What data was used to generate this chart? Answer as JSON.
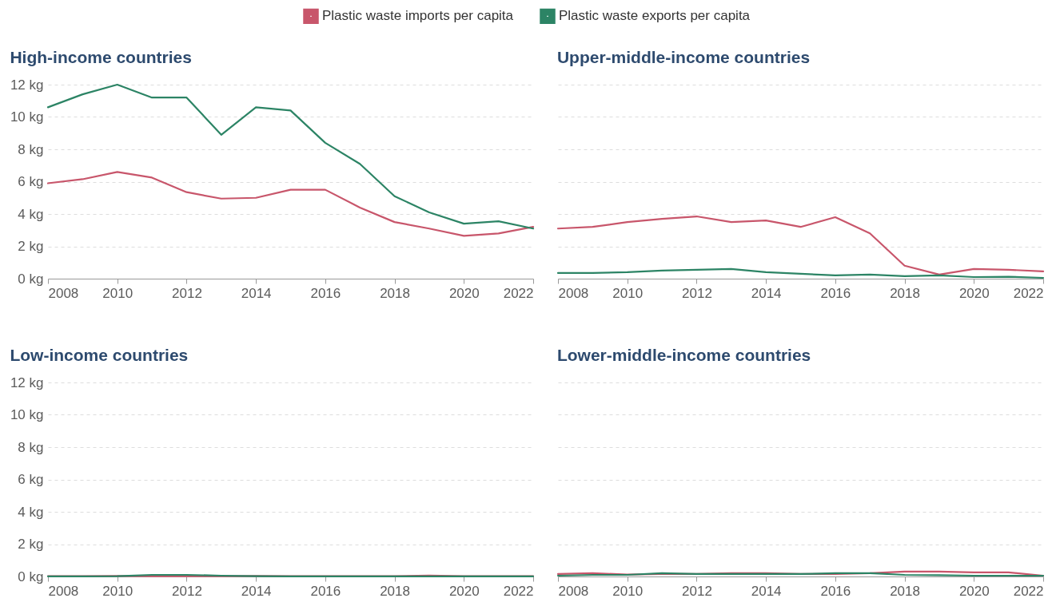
{
  "chart_data": [
    {
      "type": "line",
      "title": "High-income countries",
      "x": [
        2008,
        2009,
        2010,
        2011,
        2012,
        2013,
        2014,
        2015,
        2016,
        2017,
        2018,
        2019,
        2020,
        2021,
        2022
      ],
      "xlim": [
        2008,
        2022
      ],
      "xticks": [
        2008,
        2010,
        2012,
        2014,
        2016,
        2018,
        2020,
        2022
      ],
      "ylim": [
        0,
        12
      ],
      "yticks": [
        {
          "value": 0,
          "label": "0 kg"
        },
        {
          "value": 2,
          "label": "2 kg"
        },
        {
          "value": 4,
          "label": "4 kg"
        },
        {
          "value": 6,
          "label": "6 kg"
        },
        {
          "value": 8,
          "label": "8 kg"
        },
        {
          "value": 10,
          "label": "10 kg"
        },
        {
          "value": 12,
          "label": "12 kg"
        }
      ],
      "grid": "y",
      "legend": "top",
      "series": [
        {
          "name": "Plastic waste imports per capita",
          "color": "#c8566b",
          "values": [
            5.9,
            6.15,
            6.6,
            6.25,
            5.35,
            4.95,
            5.0,
            5.5,
            5.5,
            4.4,
            3.5,
            3.1,
            2.65,
            2.8,
            3.2
          ]
        },
        {
          "name": "Plastic waste exports per capita",
          "color": "#2c8465",
          "values": [
            10.6,
            11.4,
            12.0,
            11.2,
            11.2,
            8.9,
            10.6,
            10.4,
            8.4,
            7.1,
            5.1,
            4.1,
            3.4,
            3.55,
            3.1
          ]
        }
      ]
    },
    {
      "type": "line",
      "title": "Upper-middle-income countries",
      "x": [
        2008,
        2009,
        2010,
        2011,
        2012,
        2013,
        2014,
        2015,
        2016,
        2017,
        2018,
        2019,
        2020,
        2021,
        2022
      ],
      "xlim": [
        2008,
        2022
      ],
      "xticks": [
        2008,
        2010,
        2012,
        2014,
        2016,
        2018,
        2020,
        2022
      ],
      "ylim": [
        0,
        12
      ],
      "yticks": [
        {
          "value": 0,
          "label": null
        },
        {
          "value": 2,
          "label": null
        },
        {
          "value": 4,
          "label": null
        },
        {
          "value": 6,
          "label": null
        },
        {
          "value": 8,
          "label": null
        },
        {
          "value": 10,
          "label": null
        },
        {
          "value": 12,
          "label": null
        }
      ],
      "grid": "y",
      "tick_labels": "x",
      "series": [
        {
          "color": "#c8566b",
          "values": [
            3.1,
            3.2,
            3.5,
            3.7,
            3.85,
            3.5,
            3.6,
            3.2,
            3.8,
            2.8,
            0.8,
            0.25,
            0.6,
            0.55,
            0.45
          ]
        },
        {
          "color": "#2c8465",
          "values": [
            0.35,
            0.35,
            0.4,
            0.5,
            0.55,
            0.6,
            0.4,
            0.3,
            0.2,
            0.25,
            0.15,
            0.2,
            0.1,
            0.12,
            0.05
          ]
        }
      ]
    },
    {
      "type": "line",
      "title": "Low-income countries",
      "x": [
        2008,
        2009,
        2010,
        2011,
        2012,
        2013,
        2014,
        2015,
        2016,
        2017,
        2018,
        2019,
        2020,
        2021,
        2022
      ],
      "xlim": [
        2008,
        2022
      ],
      "xticks": [
        2008,
        2010,
        2012,
        2014,
        2016,
        2018,
        2020,
        2022
      ],
      "ylim": [
        0,
        12
      ],
      "yticks": [
        {
          "value": 0,
          "label": "0 kg"
        },
        {
          "value": 2,
          "label": "2 kg"
        },
        {
          "value": 4,
          "label": "4 kg"
        },
        {
          "value": 6,
          "label": "6 kg"
        },
        {
          "value": 8,
          "label": "8 kg"
        },
        {
          "value": 10,
          "label": "10 kg"
        },
        {
          "value": 12,
          "label": "12 kg"
        }
      ],
      "grid": "y",
      "series": [
        {
          "color": "#c8566b",
          "values": [
            0.02,
            0.02,
            0.03,
            0.02,
            0.02,
            0.02,
            0.03,
            0.02,
            0.02,
            0.02,
            0.02,
            0.06,
            0.02,
            0.02,
            0.02
          ]
        },
        {
          "color": "#2c8465",
          "values": [
            0.01,
            0.01,
            0.02,
            0.1,
            0.1,
            0.05,
            0.02,
            0.01,
            0.01,
            0.01,
            0.01,
            0.01,
            0.01,
            0.01,
            0.01
          ]
        }
      ]
    },
    {
      "type": "line",
      "title": "Lower-middle-income countries",
      "x": [
        2008,
        2009,
        2010,
        2011,
        2012,
        2013,
        2014,
        2015,
        2016,
        2017,
        2018,
        2019,
        2020,
        2021,
        2022
      ],
      "xlim": [
        2008,
        2022
      ],
      "xticks": [
        2008,
        2010,
        2012,
        2014,
        2016,
        2018,
        2020,
        2022
      ],
      "ylim": [
        0,
        12
      ],
      "yticks": [
        {
          "value": 0,
          "label": null
        },
        {
          "value": 2,
          "label": null
        },
        {
          "value": 4,
          "label": null
        },
        {
          "value": 6,
          "label": null
        },
        {
          "value": 8,
          "label": null
        },
        {
          "value": 10,
          "label": null
        },
        {
          "value": 12,
          "label": null
        }
      ],
      "grid": "y",
      "tick_labels": "x",
      "series": [
        {
          "color": "#c8566b",
          "values": [
            0.15,
            0.2,
            0.12,
            0.15,
            0.15,
            0.2,
            0.2,
            0.15,
            0.15,
            0.2,
            0.3,
            0.3,
            0.25,
            0.25,
            0.05
          ]
        },
        {
          "color": "#2c8465",
          "values": [
            0.05,
            0.1,
            0.1,
            0.2,
            0.15,
            0.15,
            0.15,
            0.15,
            0.2,
            0.2,
            0.1,
            0.08,
            0.05,
            0.05,
            0.05
          ]
        }
      ]
    }
  ]
}
